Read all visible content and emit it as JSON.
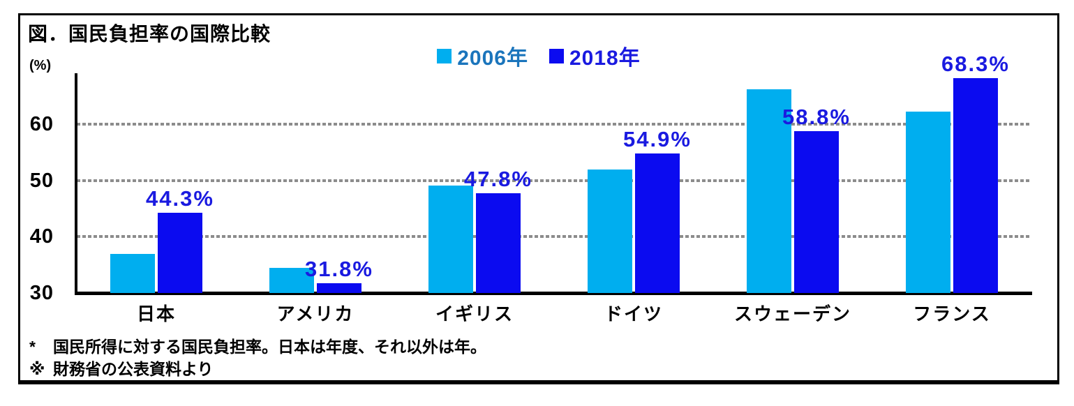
{
  "chart_data": {
    "type": "bar",
    "title": "図．国民負担率の国際比較",
    "unit_label": "(%)",
    "categories": [
      "日本",
      "アメリカ",
      "イギリス",
      "ドイツ",
      "スウェーデン",
      "フランス"
    ],
    "series": [
      {
        "name": "2006年",
        "color": "#00AEEF",
        "label_color": "#1B75BC",
        "values": [
          37.0,
          34.5,
          49.1,
          52.0,
          66.3,
          62.3
        ]
      },
      {
        "name": "2018年",
        "color": "#0B0BF0",
        "label_color": "#1A1AE0",
        "values": [
          44.3,
          31.8,
          47.8,
          54.9,
          58.8,
          68.3
        ],
        "data_labels": [
          "44.3%",
          "31.8%",
          "47.8%",
          "54.9%",
          "58.8%",
          "68.3%"
        ]
      }
    ],
    "ylim": [
      30,
      69
    ],
    "yticks": [
      30,
      40,
      50,
      60
    ],
    "gridlines": [
      40,
      50,
      60
    ],
    "gridline_style": "dotted",
    "gridline_color": "#8C8C8C",
    "axis_color": "#000000",
    "legend_position": "top-center"
  },
  "notes": [
    {
      "marker": "*",
      "text": "国民所得に対する国民負担率。日本は年度、それ以外は年。"
    },
    {
      "marker": "※",
      "text": "財務省の公表資料より"
    }
  ]
}
